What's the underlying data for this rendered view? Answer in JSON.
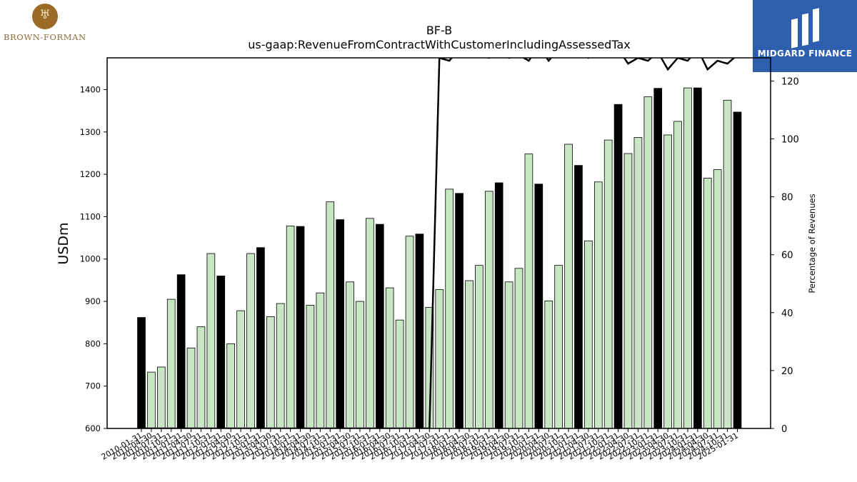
{
  "logos": {
    "left": "BROWN-FORMAN",
    "right": "MIDGARD FINANCE"
  },
  "chart_data": {
    "type": "bar",
    "title": "BF-B",
    "subtitle": "us-gaap:RevenueFromContractWithCustomerIncludingAssessedTax",
    "ylabel": "USDm",
    "y2label": "Percentage of Revenues",
    "ylim": [
      600,
      1475
    ],
    "y2lim": [
      0,
      128
    ],
    "yticks": [
      600,
      700,
      800,
      900,
      1000,
      1100,
      1200,
      1300,
      1400
    ],
    "y2ticks": [
      0,
      20,
      40,
      60,
      80,
      100,
      120
    ],
    "grid": false,
    "colors": {
      "quarter": "#c8e6c4",
      "annual": "#000000",
      "edge": "#000000",
      "line": "#000000"
    },
    "categories": [
      "2010-01-31",
      "2010-04-30",
      "2010-07-31",
      "2010-10-31",
      "2011-01-31",
      "2011-04-30",
      "2011-07-31",
      "2011-10-31",
      "2012-01-31",
      "2012-04-30",
      "2012-07-31",
      "2012-10-31",
      "2013-01-31",
      "2013-04-30",
      "2013-07-31",
      "2013-10-31",
      "2014-01-31",
      "2014-04-30",
      "2014-07-31",
      "2014-10-31",
      "2015-01-31",
      "2015-04-30",
      "2015-07-31",
      "2015-10-31",
      "2016-01-31",
      "2016-04-30",
      "2016-07-31",
      "2016-10-31",
      "2017-01-31",
      "2017-04-30",
      "2017-07-31",
      "2017-10-31",
      "2018-01-31",
      "2018-04-30",
      "2018-07-31",
      "2018-10-31",
      "2019-01-31",
      "2019-04-30",
      "2019-07-31",
      "2019-10-31",
      "2020-01-31",
      "2020-04-30",
      "2020-07-31",
      "2020-10-31",
      "2021-01-31",
      "2021-04-30",
      "2021-07-31",
      "2021-10-31",
      "2022-01-31",
      "2022-04-30",
      "2022-07-31",
      "2022-10-31",
      "2023-01-31",
      "2023-04-30",
      "2023-07-31",
      "2023-10-31",
      "2024-01-31",
      "2024-04-30",
      "2024-07-31",
      "2024-10-31",
      "2025-01-31"
    ],
    "series": [
      {
        "type": "bar",
        "axis": "left",
        "values": [
          862,
          733,
          745,
          905,
          963,
          790,
          840,
          1013,
          960,
          800,
          878,
          1013,
          1027,
          864,
          895,
          1078,
          1077,
          891,
          920,
          1135,
          1093,
          946,
          900,
          1096,
          1082,
          932,
          856,
          1054,
          1059,
          886,
          928,
          1165,
          1155,
          949,
          985,
          1160,
          1180,
          946,
          978,
          1248,
          1177,
          901,
          985,
          1271,
          1221,
          1043,
          1182,
          1281,
          1365,
          1249,
          1287,
          1383,
          1403,
          1293,
          1325,
          1404,
          1404,
          1191,
          1211,
          1375,
          1347
        ]
      },
      {
        "type": "line",
        "axis": "right",
        "values": [
          0,
          0,
          0,
          0,
          0,
          0,
          0,
          0,
          0,
          0,
          0,
          0,
          0,
          0,
          0,
          0,
          0,
          0,
          0,
          0,
          0,
          0,
          0,
          0,
          0,
          0,
          0,
          0,
          0,
          0,
          128,
          127,
          131,
          130,
          129,
          128,
          130,
          128,
          129,
          127,
          132,
          127,
          131,
          129,
          132,
          128,
          130,
          129,
          131,
          126,
          128,
          127,
          130,
          124,
          128,
          127,
          131,
          124,
          127,
          126,
          129
        ]
      }
    ]
  }
}
